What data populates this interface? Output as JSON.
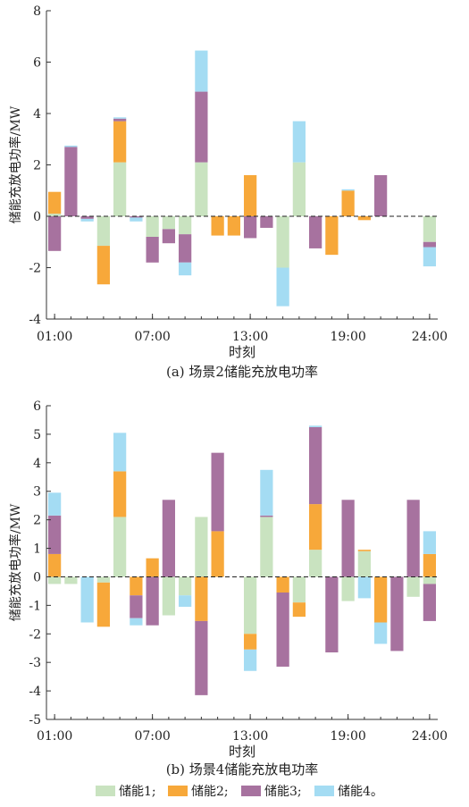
{
  "colors": {
    "s1": "#c9e3c0",
    "s2": "#f7a83a",
    "s3": "#a7729f",
    "s4": "#a4dcf3",
    "axis": "#333333",
    "zero_line": "#222222"
  },
  "legend": {
    "entries": [
      "储能1;",
      "储能2;",
      "储能3;",
      "储能4。"
    ],
    "placement": "bottom"
  },
  "chart_data": [
    {
      "type": "bar",
      "stacked": true,
      "title": "(a) 场景2储能充放电功率",
      "xlabel": "时刻",
      "ylabel": "储能充放电功率/MW",
      "ylim": [
        -4,
        8
      ],
      "yticks": [
        -4,
        -2,
        0,
        2,
        4,
        6,
        8
      ],
      "xlim": [
        1,
        24
      ],
      "xticks": [
        {
          "value": 1,
          "label": "01:00"
        },
        {
          "value": 7,
          "label": "07:00"
        },
        {
          "value": 13,
          "label": "13:00"
        },
        {
          "value": 19,
          "label": "19:00"
        },
        {
          "value": 24,
          "label": "24:00"
        }
      ],
      "x": [
        1,
        2,
        3,
        4,
        5,
        6,
        7,
        8,
        9,
        10,
        11,
        12,
        13,
        14,
        15,
        16,
        17,
        18,
        19,
        20,
        21,
        22,
        23,
        24
      ],
      "series": [
        {
          "key": "s1",
          "values": [
            0.1,
            0,
            0,
            -1.15,
            2.1,
            0,
            -0.8,
            -0.5,
            -0.7,
            2.1,
            0,
            0,
            0,
            0,
            -2,
            2.1,
            0,
            0,
            0,
            0,
            0,
            0,
            0,
            -1
          ]
        },
        {
          "key": "s2",
          "values": [
            0.85,
            0,
            0,
            -1.5,
            1.6,
            0,
            0,
            0,
            0,
            0,
            -0.75,
            -0.75,
            1.6,
            0,
            0,
            0,
            0,
            -1.5,
            1,
            -0.15,
            0,
            0,
            0,
            0
          ]
        },
        {
          "key": "s3",
          "values": [
            -1.35,
            2.7,
            -0.1,
            0,
            0.1,
            -0.05,
            -1,
            -0.55,
            -1.1,
            2.75,
            0,
            0,
            -0.85,
            -0.45,
            0,
            0,
            -1.25,
            0,
            0,
            0,
            1.6,
            0,
            0,
            -0.2
          ]
        },
        {
          "key": "s4",
          "values": [
            0,
            0.05,
            -0.1,
            0,
            0.05,
            -0.15,
            0,
            0,
            -0.5,
            1.6,
            0,
            0,
            0,
            0,
            -1.5,
            1.6,
            0,
            0,
            0.05,
            0,
            0,
            0,
            0,
            -0.75
          ]
        }
      ]
    },
    {
      "type": "bar",
      "stacked": true,
      "title": "(b) 场景4储能充放电功率",
      "xlabel": "时刻",
      "ylabel": "储能充放电功率/MW",
      "ylim": [
        -5,
        6
      ],
      "yticks": [
        -5,
        -4,
        -3,
        -2,
        -1,
        0,
        1,
        2,
        3,
        4,
        5,
        6
      ],
      "xlim": [
        1,
        24
      ],
      "xticks": [
        {
          "value": 1,
          "label": "01:00"
        },
        {
          "value": 7,
          "label": "07:00"
        },
        {
          "value": 13,
          "label": "13:00"
        },
        {
          "value": 19,
          "label": "19:00"
        },
        {
          "value": 24,
          "label": "24:00"
        }
      ],
      "x": [
        1,
        2,
        3,
        4,
        5,
        6,
        7,
        8,
        9,
        10,
        11,
        12,
        13,
        14,
        15,
        16,
        17,
        18,
        19,
        20,
        21,
        22,
        23,
        24
      ],
      "series": [
        {
          "key": "s1",
          "values": [
            -0.25,
            -0.25,
            0,
            -0.2,
            2.1,
            0,
            0,
            -1.35,
            -0.65,
            2.1,
            0,
            0,
            -2,
            2.1,
            0,
            -0.9,
            0.95,
            0,
            -0.85,
            0.9,
            0,
            0,
            -0.7,
            -0.25
          ]
        },
        {
          "key": "s2",
          "values": [
            0.8,
            0,
            0,
            -1.55,
            1.6,
            -0.65,
            0.65,
            0,
            0,
            -1.55,
            1.6,
            0,
            -0.55,
            0,
            -0.55,
            -0.5,
            1.6,
            0,
            0,
            0.05,
            -1.6,
            0,
            0,
            0.8
          ]
        },
        {
          "key": "s3",
          "values": [
            1.35,
            0,
            0,
            0,
            0,
            -0.8,
            -1.7,
            2.7,
            0,
            -2.6,
            2.75,
            0,
            0,
            0.05,
            -2.6,
            0,
            2.7,
            -2.65,
            2.7,
            0,
            0,
            -2.6,
            2.7,
            -1.3
          ]
        },
        {
          "key": "s4",
          "values": [
            0.8,
            0,
            -1.6,
            0,
            1.35,
            -0.25,
            0,
            0,
            -0.4,
            0,
            0,
            0,
            -0.75,
            1.6,
            0,
            0,
            0.05,
            0,
            0,
            -0.75,
            -0.75,
            0,
            0,
            0.8
          ]
        }
      ]
    }
  ]
}
